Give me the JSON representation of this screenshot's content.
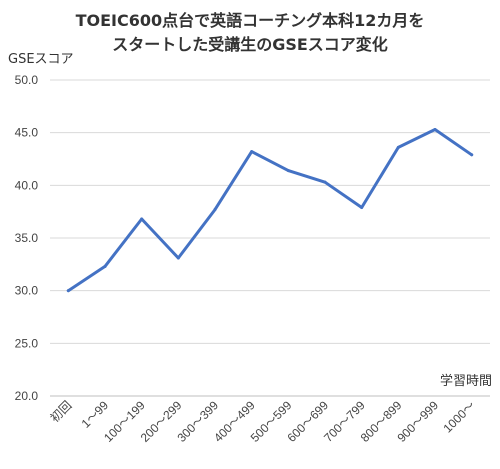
{
  "chart_data": {
    "type": "line",
    "title_line1": "TOEIC600点台で英語コーチング本科12カ月を",
    "title_line2": "スタートした受講生のGSEスコア変化",
    "ylabel": "GSEスコア",
    "xlabel": "学習時間",
    "ylim": [
      20,
      50
    ],
    "yticks": [
      "50.0",
      "45.0",
      "40.0",
      "35.0",
      "30.0",
      "25.0",
      "20.0"
    ],
    "ytick_values": [
      50,
      45,
      40,
      35,
      30,
      25,
      20
    ],
    "grid": true,
    "legend": false,
    "categories": [
      "初回",
      "1～99",
      "100～199",
      "200～299",
      "300～399",
      "400～499",
      "500～599",
      "600～699",
      "700～799",
      "800～899",
      "900～999",
      "1000～"
    ],
    "values": [
      30.0,
      32.3,
      36.8,
      33.1,
      37.7,
      43.2,
      41.4,
      40.3,
      37.9,
      43.6,
      45.3,
      42.9
    ],
    "color": "#4472c4"
  }
}
